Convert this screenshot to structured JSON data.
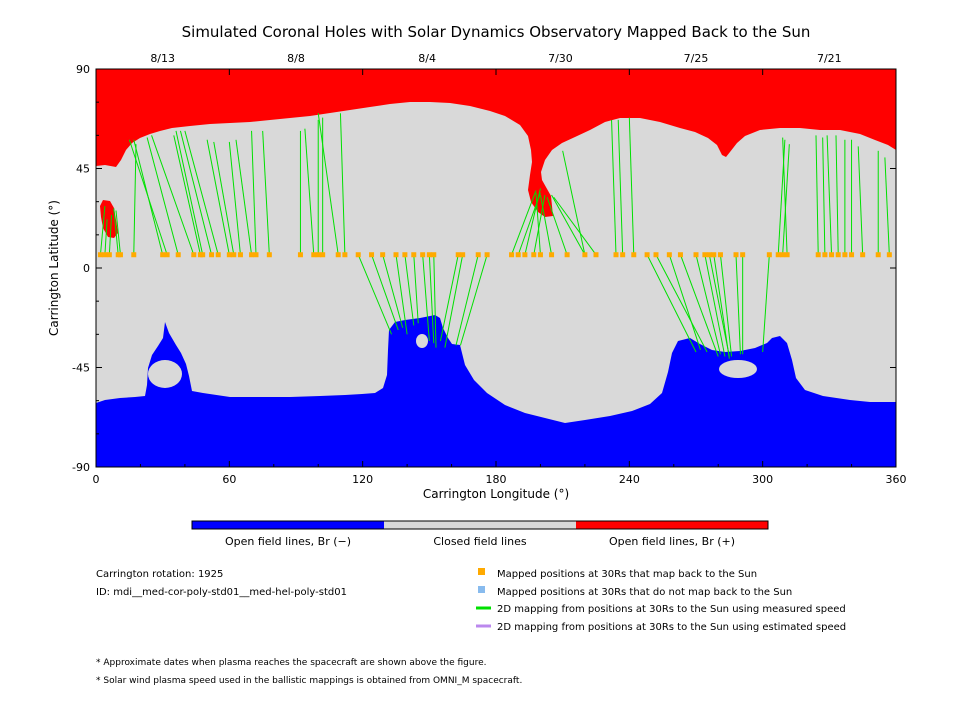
{
  "chart_data": {
    "type": "map",
    "title": "Simulated Coronal Holes with Solar Dynamics Observatory Mapped Back to the Sun",
    "xlabel": "Carrington Longitude (°)",
    "ylabel": "Carrington Latitude (°)",
    "xlim": [
      0,
      360
    ],
    "ylim": [
      -90,
      90
    ],
    "x_ticks": [
      "0",
      "60",
      "120",
      "180",
      "240",
      "300",
      "360"
    ],
    "y_ticks": [
      "-90",
      "-45",
      "0",
      "45",
      "90"
    ],
    "top_date_ticks": [
      {
        "label": "8/13",
        "lon": 30
      },
      {
        "label": "8/8",
        "lon": 90
      },
      {
        "label": "8/4",
        "lon": 149
      },
      {
        "label": "7/30",
        "lon": 209
      },
      {
        "label": "7/25",
        "lon": 270
      },
      {
        "label": "7/21",
        "lon": 330
      }
    ],
    "colorbar": [
      {
        "label": "Open field lines, Br (−)",
        "color": "#0000ff"
      },
      {
        "label": "Closed field lines",
        "color": "#d9d9d9"
      },
      {
        "label": "Open field lines, Br (+)",
        "color": "#ff0000"
      }
    ],
    "info": {
      "rotation": "Carrington rotation: 1925",
      "id": "ID: mdi__med-cor-poly-std01__med-hel-poly-std01"
    },
    "legend": [
      {
        "label": "Mapped positions at 30Rs that map back to the Sun",
        "color": "#ffaa00",
        "type": "square"
      },
      {
        "label": "Mapped positions at 30Rs that do not map back to the Sun",
        "color": "#88bbee",
        "type": "square"
      },
      {
        "label": "2D mapping from positions at 30Rs to the Sun using measured speed",
        "color": "#00e000",
        "type": "line"
      },
      {
        "label": "2D mapping from positions at 30Rs to the Sun using estimated speed",
        "color": "#bb88ee",
        "type": "line"
      }
    ],
    "footnotes": [
      "* Approximate dates when plasma reaches the spacecraft are shown above the figure.",
      "* Solar wind plasma speed used in the ballistic mappings is obtained from OMNI_M spacecraft."
    ],
    "mapping_lat": 6,
    "mappings": [
      {
        "lon": 2,
        "to": [
          [
            4,
            28
          ]
        ]
      },
      {
        "lon": 4,
        "to": [
          [
            5,
            22
          ]
        ]
      },
      {
        "lon": 6,
        "to": [
          [
            7,
            24
          ]
        ]
      },
      {
        "lon": 10,
        "to": [
          [
            8,
            27
          ]
        ]
      },
      {
        "lon": 11,
        "to": [
          [
            9,
            26
          ]
        ]
      },
      {
        "lon": 17,
        "to": [
          [
            18,
            56
          ]
        ]
      },
      {
        "lon": 30,
        "to": [
          [
            17,
            58
          ]
        ]
      },
      {
        "lon": 32,
        "to": [
          [
            15,
            58
          ]
        ]
      },
      {
        "lon": 37,
        "to": [
          [
            23,
            59
          ]
        ]
      },
      {
        "lon": 44,
        "to": [
          [
            25,
            60
          ]
        ]
      },
      {
        "lon": 47,
        "to": [
          [
            35,
            60
          ]
        ]
      },
      {
        "lon": 48,
        "to": [
          [
            36,
            62
          ]
        ]
      },
      {
        "lon": 52,
        "to": [
          [
            38,
            62
          ]
        ]
      },
      {
        "lon": 55,
        "to": [
          [
            40,
            62
          ]
        ]
      },
      {
        "lon": 60,
        "to": [
          [
            50,
            58
          ]
        ]
      },
      {
        "lon": 62,
        "to": [
          [
            53,
            57
          ]
        ]
      },
      {
        "lon": 65,
        "to": [
          [
            60,
            57
          ]
        ]
      },
      {
        "lon": 70,
        "to": [
          [
            63,
            58
          ]
        ]
      },
      {
        "lon": 72,
        "to": [
          [
            70,
            62
          ]
        ]
      },
      {
        "lon": 78,
        "to": [
          [
            75,
            62
          ]
        ]
      },
      {
        "lon": 92,
        "to": [
          [
            92,
            62
          ]
        ]
      },
      {
        "lon": 98,
        "to": [
          [
            94,
            63
          ]
        ]
      },
      {
        "lon": 100,
        "to": [
          [
            100,
            67
          ]
        ]
      },
      {
        "lon": 102,
        "to": [
          [
            102,
            68
          ]
        ]
      },
      {
        "lon": 109,
        "to": [
          [
            100,
            70
          ]
        ]
      },
      {
        "lon": 112,
        "to": [
          [
            110,
            70
          ]
        ]
      },
      {
        "lon": 118,
        "to": [
          [
            133,
            -30
          ]
        ]
      },
      {
        "lon": 124,
        "to": [
          [
            136,
            -28
          ]
        ]
      },
      {
        "lon": 129,
        "to": [
          [
            138,
            -27
          ]
        ]
      },
      {
        "lon": 135,
        "to": [
          [
            140,
            -30
          ]
        ]
      },
      {
        "lon": 139,
        "to": [
          [
            143,
            -26
          ]
        ]
      },
      {
        "lon": 143,
        "to": [
          [
            145,
            -25
          ]
        ]
      },
      {
        "lon": 147,
        "to": [
          [
            150,
            -33
          ]
        ]
      },
      {
        "lon": 150,
        "to": [
          [
            152,
            -34
          ]
        ]
      },
      {
        "lon": 152,
        "to": [
          [
            153,
            -36
          ]
        ]
      },
      {
        "lon": 163,
        "to": [
          [
            155,
            -33
          ]
        ]
      },
      {
        "lon": 165,
        "to": [
          [
            157,
            -36
          ]
        ]
      },
      {
        "lon": 172,
        "to": [
          [
            162,
            -35
          ]
        ]
      },
      {
        "lon": 176,
        "to": [
          [
            164,
            -35
          ]
        ]
      },
      {
        "lon": 187,
        "to": [
          [
            198,
            35
          ]
        ]
      },
      {
        "lon": 190,
        "to": [
          [
            200,
            34
          ]
        ]
      },
      {
        "lon": 193,
        "to": [
          [
            200,
            36
          ]
        ]
      },
      {
        "lon": 197,
        "to": [
          [
            202,
            33
          ]
        ]
      },
      {
        "lon": 200,
        "to": [
          [
            198,
            34
          ]
        ]
      },
      {
        "lon": 205,
        "to": [
          [
            200,
            33
          ]
        ]
      },
      {
        "lon": 212,
        "to": [
          [
            203,
            32
          ]
        ]
      },
      {
        "lon": 220,
        "to": [
          [
            205,
            33
          ],
          [
            210,
            53
          ]
        ]
      },
      {
        "lon": 225,
        "to": [
          [
            206,
            32
          ]
        ]
      },
      {
        "lon": 234,
        "to": [
          [
            232,
            67
          ]
        ]
      },
      {
        "lon": 237,
        "to": [
          [
            235,
            67
          ]
        ]
      },
      {
        "lon": 242,
        "to": [
          [
            240,
            68
          ]
        ]
      },
      {
        "lon": 248,
        "to": [
          [
            270,
            -38
          ]
        ]
      },
      {
        "lon": 252,
        "to": [
          [
            275,
            -38
          ]
        ]
      },
      {
        "lon": 258,
        "to": [
          [
            272,
            -37
          ]
        ]
      },
      {
        "lon": 263,
        "to": [
          [
            280,
            -40
          ]
        ]
      },
      {
        "lon": 270,
        "to": [
          [
            281,
            -39
          ]
        ]
      },
      {
        "lon": 274,
        "to": [
          [
            283,
            -40
          ]
        ]
      },
      {
        "lon": 276,
        "to": [
          [
            285,
            -40
          ]
        ]
      },
      {
        "lon": 278,
        "to": [
          [
            285,
            -41
          ]
        ]
      },
      {
        "lon": 281,
        "to": [
          [
            286,
            -40
          ]
        ]
      },
      {
        "lon": 288,
        "to": [
          [
            290,
            -39
          ]
        ]
      },
      {
        "lon": 291,
        "to": [
          [
            291,
            -39
          ]
        ]
      },
      {
        "lon": 303,
        "to": [
          [
            300,
            -38
          ]
        ]
      },
      {
        "lon": 307,
        "to": [
          [
            310,
            58
          ]
        ]
      },
      {
        "lon": 309,
        "to": [
          [
            312,
            56
          ]
        ]
      },
      {
        "lon": 311,
        "to": [
          [
            309,
            59
          ]
        ]
      },
      {
        "lon": 325,
        "to": [
          [
            324,
            60
          ]
        ]
      },
      {
        "lon": 328,
        "to": [
          [
            327,
            59
          ]
        ]
      },
      {
        "lon": 331,
        "to": [
          [
            329,
            60
          ]
        ]
      },
      {
        "lon": 334,
        "to": [
          [
            333,
            60
          ]
        ]
      },
      {
        "lon": 337,
        "to": [
          [
            337,
            58
          ]
        ]
      },
      {
        "lon": 340,
        "to": [
          [
            340,
            58
          ]
        ]
      },
      {
        "lon": 345,
        "to": [
          [
            343,
            55
          ]
        ]
      },
      {
        "lon": 352,
        "to": [
          [
            352,
            53
          ]
        ]
      },
      {
        "lon": 357,
        "to": [
          [
            355,
            50
          ]
        ]
      }
    ]
  }
}
